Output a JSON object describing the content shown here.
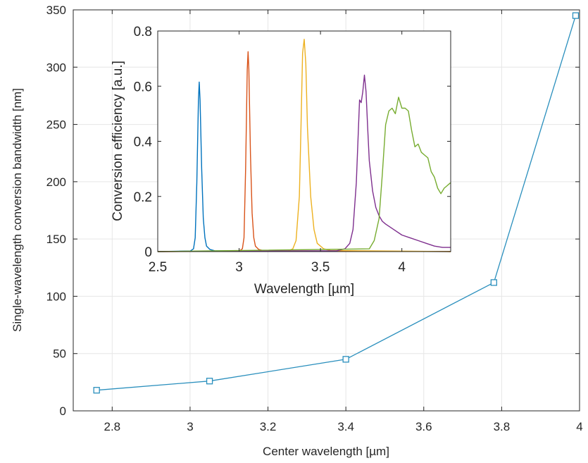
{
  "chart_data": [
    {
      "type": "line",
      "xlabel": "Center wavelength [µm]",
      "ylabel": "Single-wavelength conversion bandwidth [nm]",
      "xlim": [
        2.7,
        4.0
      ],
      "ylim": [
        0,
        350
      ],
      "xticks": [
        2.8,
        3.0,
        3.2,
        3.4,
        3.6,
        3.8,
        4.0
      ],
      "xtick_labels": [
        "2.8",
        "3",
        "3.2",
        "3.4",
        "3.6",
        "3.8",
        "4"
      ],
      "yticks": [
        0,
        50,
        100,
        150,
        200,
        250,
        300,
        350
      ],
      "ytick_labels": [
        "0",
        "50",
        "100",
        "150",
        "200",
        "250",
        "300",
        "350"
      ],
      "grid": true,
      "marker": "square",
      "color": "#2a8fbd",
      "series": [
        {
          "x": [
            2.76,
            3.05,
            3.4,
            3.78,
            3.99
          ],
          "y": [
            18,
            26,
            45,
            112,
            345
          ]
        }
      ]
    },
    {
      "type": "line",
      "xlabel": "Wavelength [µm]",
      "ylabel": "Conversion efficiency [a.u.]",
      "xlim": [
        2.5,
        4.3
      ],
      "ylim": [
        0,
        0.8
      ],
      "xticks": [
        2.5,
        3.0,
        3.5,
        4.0
      ],
      "xtick_labels": [
        "2.5",
        "3",
        "3.5",
        "4"
      ],
      "yticks": [
        0,
        0.2,
        0.4,
        0.6,
        0.8
      ],
      "ytick_labels": [
        "0",
        "0.2",
        "0.4",
        "0.6",
        "0.8"
      ],
      "grid": false,
      "series": [
        {
          "color": "#0072bd",
          "x": [
            2.5,
            2.7,
            2.72,
            2.73,
            2.74,
            2.75,
            2.755,
            2.76,
            2.77,
            2.78,
            2.79,
            2.8,
            2.82,
            2.85,
            4.3
          ],
          "y": [
            0.0,
            0.002,
            0.01,
            0.05,
            0.25,
            0.55,
            0.615,
            0.55,
            0.3,
            0.12,
            0.05,
            0.02,
            0.008,
            0.003,
            0.0
          ]
        },
        {
          "color": "#d95319",
          "x": [
            2.5,
            3.0,
            3.02,
            3.03,
            3.04,
            3.05,
            3.055,
            3.06,
            3.07,
            3.08,
            3.09,
            3.1,
            3.12,
            3.15,
            4.3
          ],
          "y": [
            0.0,
            0.002,
            0.01,
            0.05,
            0.3,
            0.66,
            0.725,
            0.66,
            0.35,
            0.14,
            0.05,
            0.02,
            0.008,
            0.003,
            0.0
          ]
        },
        {
          "color": "#edb120",
          "x": [
            2.5,
            3.3,
            3.33,
            3.35,
            3.37,
            3.38,
            3.39,
            3.4,
            3.41,
            3.42,
            3.44,
            3.46,
            3.48,
            3.52,
            3.56,
            4.3
          ],
          "y": [
            0.0,
            0.002,
            0.01,
            0.04,
            0.2,
            0.45,
            0.72,
            0.77,
            0.68,
            0.45,
            0.2,
            0.08,
            0.03,
            0.01,
            0.004,
            0.0
          ]
        },
        {
          "color": "#7e2f8e",
          "x": [
            2.5,
            3.6,
            3.65,
            3.68,
            3.7,
            3.72,
            3.74,
            3.75,
            3.76,
            3.77,
            3.78,
            3.79,
            3.8,
            3.82,
            3.84,
            3.86,
            3.88,
            3.9,
            3.95,
            4.0,
            4.05,
            4.1,
            4.15,
            4.2,
            4.25,
            4.3
          ],
          "y": [
            0.0,
            0.003,
            0.01,
            0.03,
            0.08,
            0.25,
            0.55,
            0.54,
            0.58,
            0.64,
            0.58,
            0.45,
            0.33,
            0.22,
            0.16,
            0.13,
            0.11,
            0.1,
            0.08,
            0.06,
            0.05,
            0.04,
            0.03,
            0.02,
            0.015,
            0.015
          ]
        },
        {
          "color": "#77ac30",
          "x": [
            2.5,
            3.8,
            3.83,
            3.86,
            3.88,
            3.9,
            3.92,
            3.94,
            3.96,
            3.98,
            4.0,
            4.02,
            4.04,
            4.06,
            4.08,
            4.1,
            4.12,
            4.14,
            4.16,
            4.18,
            4.2,
            4.22,
            4.24,
            4.26,
            4.28,
            4.3
          ],
          "y": [
            0.0,
            0.01,
            0.04,
            0.12,
            0.28,
            0.46,
            0.51,
            0.52,
            0.5,
            0.56,
            0.52,
            0.52,
            0.51,
            0.44,
            0.38,
            0.39,
            0.36,
            0.35,
            0.34,
            0.29,
            0.27,
            0.23,
            0.21,
            0.23,
            0.24,
            0.25
          ]
        }
      ]
    }
  ]
}
